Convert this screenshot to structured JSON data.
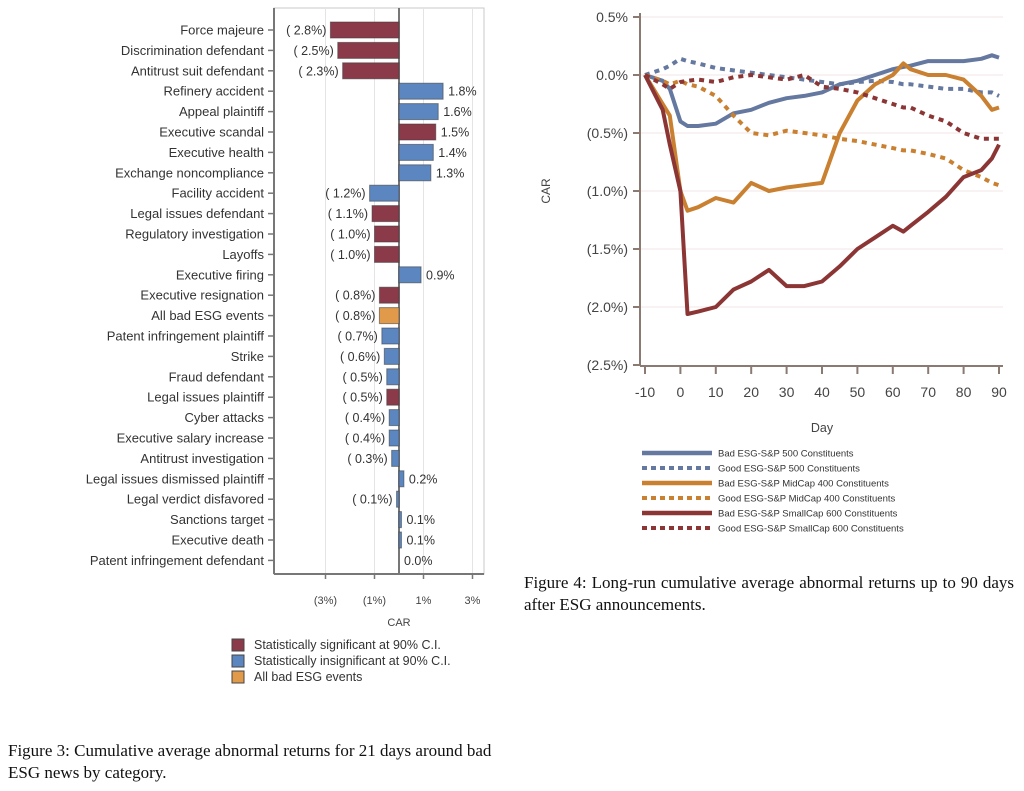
{
  "chart_data": [
    {
      "type": "bar",
      "orientation": "horizontal",
      "title": "",
      "xlabel": "CAR",
      "ylabel": "",
      "xlim": [
        -3.5,
        3.5
      ],
      "x_ticks": [
        -3,
        -1,
        1,
        3
      ],
      "x_tick_labels": [
        "(3%)",
        "(1%)",
        "1%",
        "3%"
      ],
      "grid": true,
      "legend_position": "bottom",
      "legend": [
        {
          "key": "significant",
          "label": "Statistically significant at 90% C.I.",
          "color": "#8B3A4A"
        },
        {
          "key": "insignificant",
          "label": "Statistically insignificant at 90% C.I.",
          "color": "#5B86C0"
        },
        {
          "key": "all",
          "label": "All bad ESG events",
          "color": "#E09A4A"
        }
      ],
      "categories": [
        "Force majeure",
        "Discrimination defendant",
        "Antitrust suit defendant",
        "Refinery accident",
        "Appeal plaintiff",
        "Executive scandal",
        "Executive health",
        "Exchange noncompliance",
        "Facility accident",
        "Legal issues defendant",
        "Regulatory investigation",
        "Layoffs",
        "Executive firing",
        "Executive resignation",
        "All bad ESG events",
        "Patent infringement plaintiff",
        "Strike",
        "Fraud defendant",
        "Legal issues plaintiff",
        "Cyber attacks",
        "Executive salary increase",
        "Antitrust investigation",
        "Legal issues dismissed plaintiff",
        "Legal verdict disfavored",
        "Sanctions target",
        "Executive death",
        "Patent infringement defendant"
      ],
      "values": [
        -2.8,
        -2.5,
        -2.3,
        1.8,
        1.6,
        1.5,
        1.4,
        1.3,
        -1.2,
        -1.1,
        -1.0,
        -1.0,
        0.9,
        -0.8,
        -0.8,
        -0.7,
        -0.6,
        -0.5,
        -0.5,
        -0.4,
        -0.4,
        -0.3,
        0.2,
        -0.1,
        0.1,
        0.1,
        0.0
      ],
      "labels": [
        "( 2.8%)",
        "( 2.5%)",
        "( 2.3%)",
        "1.8%",
        "1.6%",
        "1.5%",
        "1.4%",
        "1.3%",
        "( 1.2%)",
        "( 1.1%)",
        "( 1.0%)",
        "( 1.0%)",
        "0.9%",
        "( 0.8%)",
        "( 0.8%)",
        "( 0.7%)",
        "( 0.6%)",
        "( 0.5%)",
        "( 0.5%)",
        "( 0.4%)",
        "( 0.4%)",
        "( 0.3%)",
        "0.2%",
        "( 0.1%)",
        "0.1%",
        "0.1%",
        "0.0%"
      ],
      "groups": [
        "significant",
        "significant",
        "significant",
        "insignificant",
        "insignificant",
        "significant",
        "insignificant",
        "insignificant",
        "insignificant",
        "significant",
        "significant",
        "significant",
        "insignificant",
        "significant",
        "all",
        "insignificant",
        "insignificant",
        "insignificant",
        "significant",
        "insignificant",
        "insignificant",
        "insignificant",
        "insignificant",
        "insignificant",
        "insignificant",
        "insignificant",
        "insignificant"
      ]
    },
    {
      "type": "line",
      "title": "",
      "xlabel": "Day",
      "ylabel": "CAR",
      "xlim": [
        -10,
        90
      ],
      "ylim": [
        -2.5,
        0.5
      ],
      "x_ticks": [
        -10,
        0,
        10,
        20,
        30,
        40,
        50,
        60,
        70,
        80,
        90
      ],
      "y_ticks": [
        0.5,
        0.0,
        -0.5,
        -1.0,
        -1.5,
        -2.0,
        -2.5
      ],
      "y_tick_labels": [
        "0.5%",
        "0.0%",
        "(0.5%)",
        "(1.0%)",
        "(1.5%)",
        "(2.0%)",
        "(2.5%)"
      ],
      "grid": true,
      "legend_position": "bottom",
      "x": [
        -10,
        -5,
        -3,
        0,
        2,
        5,
        10,
        15,
        20,
        25,
        30,
        35,
        40,
        45,
        50,
        55,
        60,
        63,
        65,
        70,
        75,
        80,
        85,
        88,
        90
      ],
      "series": [
        {
          "name": "Bad ESG-S&P 500 Constituents",
          "color": "#6478A0",
          "dash": "solid",
          "values": [
            0.0,
            -0.05,
            -0.12,
            -0.4,
            -0.44,
            -0.44,
            -0.42,
            -0.33,
            -0.3,
            -0.24,
            -0.2,
            -0.18,
            -0.15,
            -0.08,
            -0.05,
            0.0,
            0.05,
            0.07,
            0.08,
            0.12,
            0.12,
            0.12,
            0.14,
            0.17,
            0.15
          ]
        },
        {
          "name": "Good ESG-S&P 500 Constituents",
          "color": "#6478A0",
          "dash": "dotted",
          "values": [
            0.0,
            0.05,
            0.08,
            0.14,
            0.12,
            0.1,
            0.06,
            0.04,
            0.02,
            0.0,
            -0.02,
            -0.04,
            -0.06,
            -0.08,
            -0.06,
            -0.05,
            -0.06,
            -0.08,
            -0.08,
            -0.1,
            -0.12,
            -0.12,
            -0.15,
            -0.15,
            -0.18
          ]
        },
        {
          "name": "Bad ESG-S&P MidCap 400 Constituents",
          "color": "#C98030",
          "dash": "solid",
          "values": [
            0.0,
            -0.25,
            -0.35,
            -1.0,
            -1.17,
            -1.14,
            -1.06,
            -1.1,
            -0.93,
            -1.0,
            -0.97,
            -0.95,
            -0.93,
            -0.5,
            -0.22,
            -0.08,
            0.0,
            0.1,
            0.05,
            0.0,
            0.0,
            -0.04,
            -0.18,
            -0.3,
            -0.28
          ]
        },
        {
          "name": "Good ESG-S&P MidCap 400 Constituents",
          "color": "#C98030",
          "dash": "dotted",
          "values": [
            0.0,
            -0.05,
            -0.08,
            -0.05,
            -0.08,
            -0.1,
            -0.18,
            -0.35,
            -0.5,
            -0.52,
            -0.48,
            -0.5,
            -0.52,
            -0.55,
            -0.57,
            -0.6,
            -0.63,
            -0.65,
            -0.65,
            -0.68,
            -0.72,
            -0.82,
            -0.88,
            -0.93,
            -0.95
          ]
        },
        {
          "name": "Bad ESG-S&P SmallCap 600 Constituents",
          "color": "#8B3535",
          "dash": "solid",
          "values": [
            0.0,
            -0.3,
            -0.6,
            -1.0,
            -2.06,
            -2.04,
            -2.0,
            -1.85,
            -1.78,
            -1.68,
            -1.82,
            -1.82,
            -1.78,
            -1.65,
            -1.5,
            -1.4,
            -1.3,
            -1.35,
            -1.3,
            -1.18,
            -1.05,
            -0.88,
            -0.82,
            -0.72,
            -0.6
          ]
        },
        {
          "name": "Good ESG-S&P SmallCap 600 Constituents",
          "color": "#8B3535",
          "dash": "dotted",
          "values": [
            0.0,
            -0.08,
            -0.12,
            -0.06,
            -0.05,
            -0.04,
            -0.06,
            -0.02,
            0.0,
            -0.02,
            -0.04,
            0.0,
            -0.1,
            -0.12,
            -0.15,
            -0.2,
            -0.25,
            -0.28,
            -0.28,
            -0.35,
            -0.4,
            -0.5,
            -0.55,
            -0.55,
            -0.55
          ]
        }
      ]
    }
  ],
  "captions": {
    "left": "Figure 3: Cumulative average abnormal returns for 21 days around bad ESG news by category.",
    "right": "Figure 4:  Long-run cumulative average abnormal returns up to 90 days after ESG announcements."
  }
}
